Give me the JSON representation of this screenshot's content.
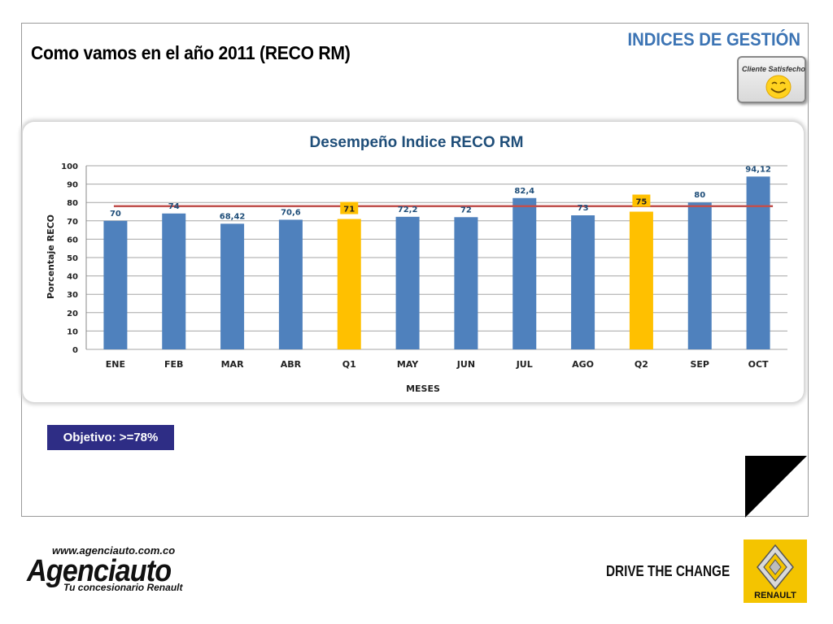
{
  "header": {
    "page_title": "Como vamos en el año 2011 (RECO RM)",
    "section_title": "INDICES DE GESTIÓN",
    "badge_text": "Cliente Satisfecho"
  },
  "chart_data": {
    "type": "bar",
    "title": "Desempeño Indice RECO RM",
    "xlabel": "MESES",
    "ylabel": "Porcentaje RECO",
    "ylim": [
      0,
      100
    ],
    "yticks": [
      0,
      10,
      20,
      30,
      40,
      50,
      60,
      70,
      80,
      90,
      100
    ],
    "categories": [
      "ENE",
      "FEB",
      "MAR",
      "ABR",
      "Q1",
      "MAY",
      "JUN",
      "JUL",
      "AGO",
      "Q2",
      "SEP",
      "OCT"
    ],
    "values": [
      70,
      74,
      68.42,
      70.6,
      71,
      72.2,
      72,
      82.4,
      73,
      75,
      80,
      94.12
    ],
    "value_labels": [
      "70",
      "74",
      "68,42",
      "70,6",
      "71",
      "72,2",
      "72",
      "82,4",
      "73",
      "75",
      "80",
      "94,12"
    ],
    "highlight_categories": [
      "Q1",
      "Q2"
    ],
    "target_line": 78,
    "grid": true,
    "colors": {
      "bar": "#4f81bd",
      "highlight_bar": "#ffc000",
      "target_line": "#c0504d",
      "value_label": "#1f4e79",
      "title": "#1f4e79"
    }
  },
  "objective": {
    "label": "Objetivo: >=78%"
  },
  "footer": {
    "website": "www.agenciauto.com.co",
    "brand": "Agenciauto",
    "tagline": "Tu concesionario Renault",
    "slogan": "DRIVE THE CHANGE",
    "logo_text": "RENAULT"
  }
}
